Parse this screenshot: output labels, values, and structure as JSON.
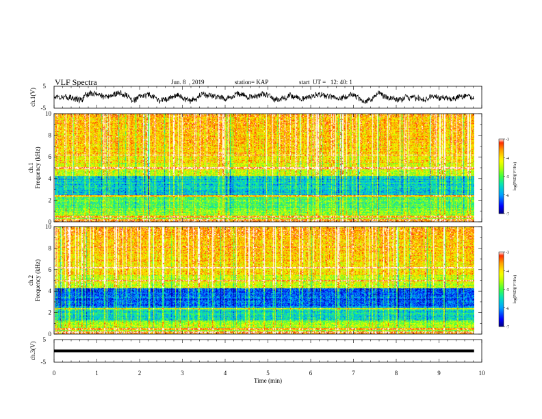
{
  "header": {
    "title": "VLF Spectra",
    "date": "Jun. 8  , 2019",
    "station": "station= KAP",
    "start": "start  UT =   12: 40: 1"
  },
  "chart_data": [
    {
      "id": "ch1-waveform",
      "type": "line",
      "ylabel": "ch.1(V)",
      "ylim": [
        -5,
        5
      ],
      "yticks": [
        "5",
        "-5"
      ],
      "xlim": [
        0,
        10
      ],
      "x_range_data": [
        0,
        9.82
      ],
      "description_values": {
        "mean": 0.2,
        "amplitude_range": [
          -3,
          3
        ]
      }
    },
    {
      "id": "ch1-spectrogram",
      "type": "heatmap",
      "ylabel_lines": [
        "ch.1",
        "Frequency (kHz)"
      ],
      "ylim": [
        0,
        10
      ],
      "yticks": [
        "0",
        "2",
        "4",
        "6",
        "8",
        "10"
      ],
      "xlim": [
        0,
        10
      ],
      "colorbar": {
        "label": "log(PSD)(V²/Hz)",
        "range": [
          -7,
          -3
        ],
        "ticks": [
          "-3",
          "-4",
          "-5",
          "-6",
          "-7"
        ]
      }
    },
    {
      "id": "ch2-spectrogram",
      "type": "heatmap",
      "ylabel_lines": [
        "ch.2",
        "Frequency (kHz)"
      ],
      "ylim": [
        0,
        10
      ],
      "yticks": [
        "0",
        "2",
        "4",
        "6",
        "8",
        "10"
      ],
      "xlim": [
        0,
        10
      ],
      "colorbar": {
        "label": "log(PSD)(V²/Hz)",
        "range": [
          -7,
          -3
        ],
        "ticks": [
          "-3",
          "-4",
          "-5",
          "-6",
          "-7"
        ]
      }
    },
    {
      "id": "ch3-waveform",
      "type": "line",
      "ylabel": "ch.3(V)",
      "ylim": [
        -5,
        5
      ],
      "yticks": [
        "5",
        "-5"
      ],
      "xlim": [
        0,
        10
      ],
      "series": [
        {
          "x": [
            0,
            9.82
          ],
          "y": [
            0,
            0
          ]
        }
      ]
    }
  ],
  "x_axis": {
    "label": "Time (min)",
    "ticks": [
      "0",
      "1",
      "2",
      "3",
      "4",
      "5",
      "6",
      "7",
      "8",
      "9",
      "10"
    ]
  },
  "colors": {
    "trace": "#000000",
    "colormap": [
      "#000080",
      "#0000ff",
      "#00a0ff",
      "#00e0c0",
      "#40ff40",
      "#c0ff00",
      "#ffff00",
      "#ffa000",
      "#ff2000",
      "#ffffff"
    ]
  }
}
